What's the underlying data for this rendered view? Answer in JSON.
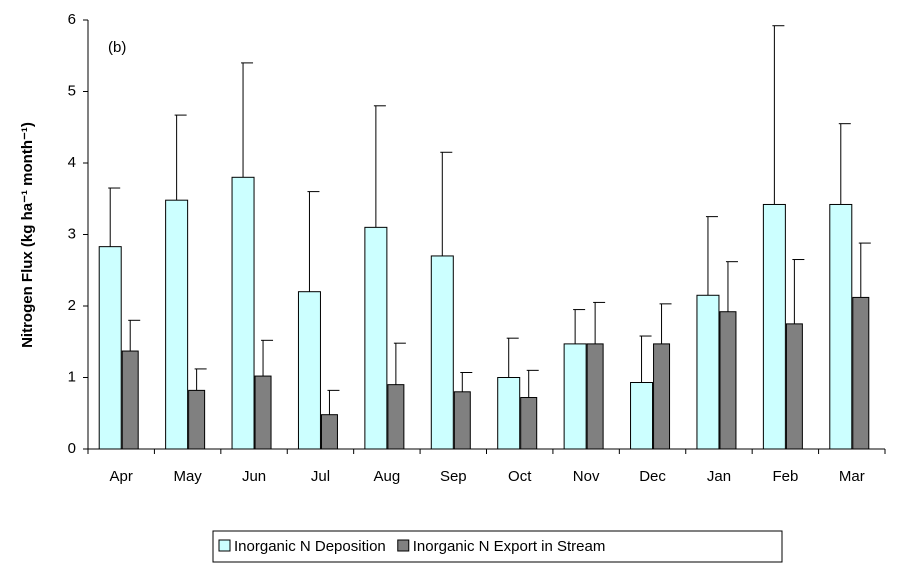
{
  "chart_data": {
    "type": "bar",
    "ylabel": "Nitrogen Flux (kg ha⁻¹ month⁻¹)",
    "annotation": "(b)",
    "categories": [
      "Apr",
      "May",
      "Jun",
      "Jul",
      "Aug",
      "Sep",
      "Oct",
      "Nov",
      "Dec",
      "Jan",
      "Feb",
      "Mar"
    ],
    "series": [
      {
        "name": "Inorganic N Deposition",
        "color": "#ccffff",
        "values": [
          2.83,
          3.48,
          3.8,
          2.2,
          3.1,
          2.7,
          1.0,
          1.47,
          0.93,
          2.15,
          3.42,
          3.42
        ],
        "errors": [
          0.82,
          1.19,
          1.6,
          1.4,
          1.7,
          1.45,
          0.55,
          0.48,
          0.65,
          1.1,
          2.5,
          1.13
        ]
      },
      {
        "name": "Inorganic N Export in Stream",
        "color": "#808080",
        "values": [
          1.37,
          0.82,
          1.02,
          0.48,
          0.9,
          0.8,
          0.72,
          1.47,
          1.47,
          1.92,
          1.75,
          2.12
        ],
        "errors": [
          0.43,
          0.3,
          0.5,
          0.34,
          0.58,
          0.27,
          0.38,
          0.58,
          0.56,
          0.7,
          0.9,
          0.76
        ]
      }
    ],
    "ylim": [
      0,
      6
    ],
    "yticks": [
      0,
      1,
      2,
      3,
      4,
      5,
      6
    ],
    "grid": false,
    "legend": "bottom"
  }
}
